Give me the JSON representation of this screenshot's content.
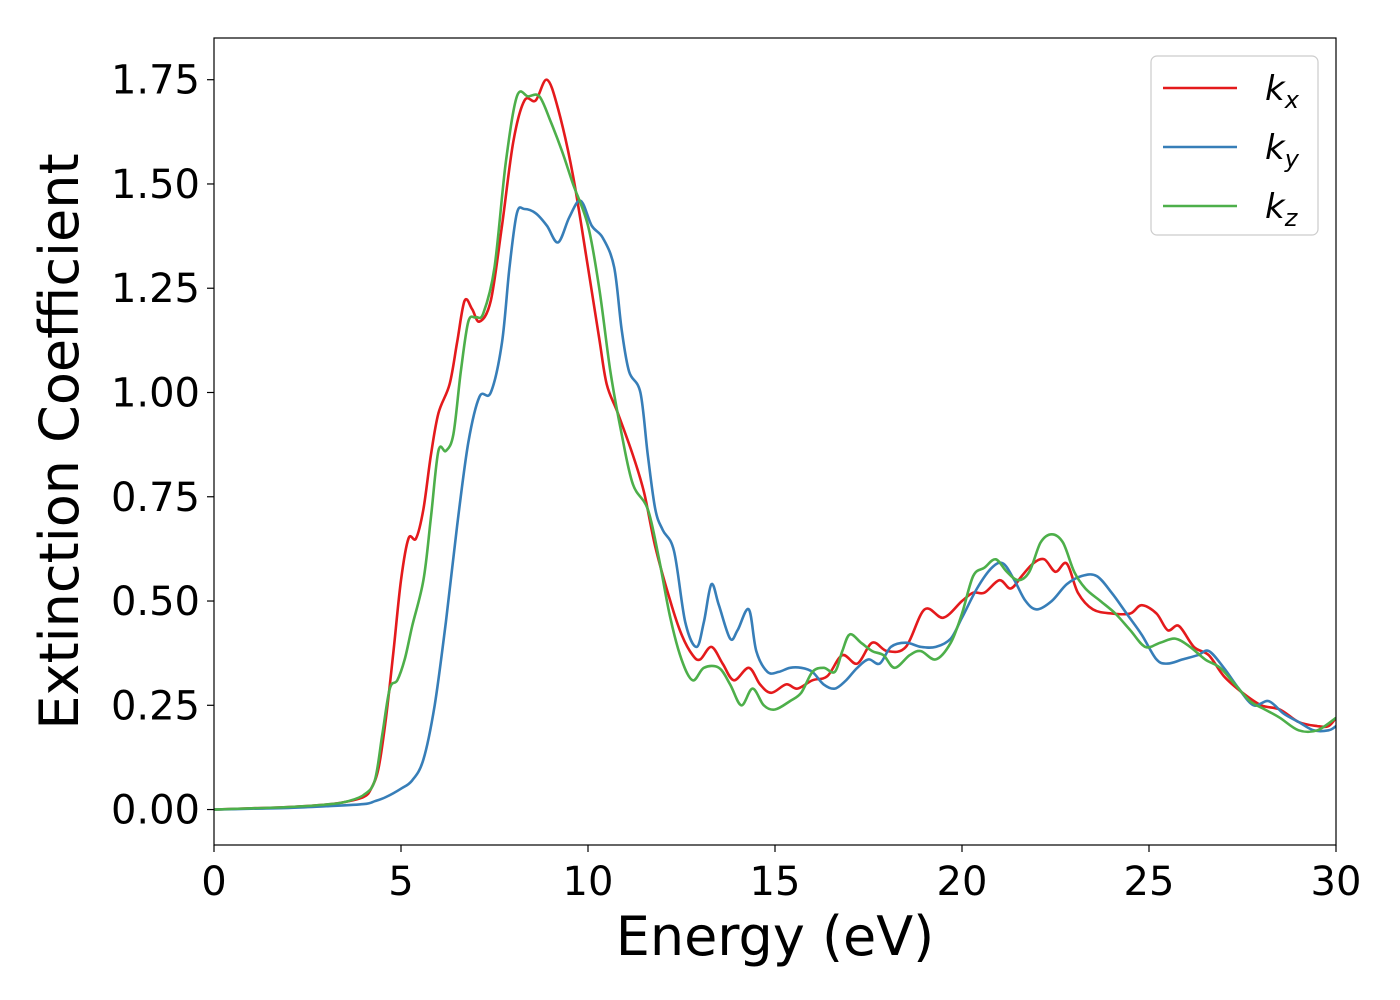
{
  "chart_data": {
    "type": "line",
    "title": "",
    "xlabel": "Energy (eV)",
    "ylabel": "Extinction Coefficient",
    "xlim": [
      0,
      30
    ],
    "ylim": [
      -0.085,
      1.85
    ],
    "xticks": [
      0,
      5,
      10,
      15,
      20,
      25,
      30
    ],
    "xtick_labels": [
      "0",
      "5",
      "10",
      "15",
      "20",
      "25",
      "30"
    ],
    "yticks": [
      0,
      0.25,
      0.5,
      0.75,
      1.0,
      1.25,
      1.5,
      1.75
    ],
    "ytick_labels": [
      "0.00",
      "0.25",
      "0.50",
      "0.75",
      "1.00",
      "1.25",
      "1.50",
      "1.75"
    ],
    "grid": false,
    "legend": "top-right",
    "series": [
      {
        "name": "k",
        "sub": "x",
        "color": "#e41a1c",
        "points": [
          [
            0,
            0
          ],
          [
            1,
            0.003
          ],
          [
            2,
            0.006
          ],
          [
            3,
            0.012
          ],
          [
            3.5,
            0.018
          ],
          [
            4,
            0.03
          ],
          [
            4.2,
            0.05
          ],
          [
            4.4,
            0.1
          ],
          [
            4.6,
            0.22
          ],
          [
            4.8,
            0.38
          ],
          [
            5.0,
            0.55
          ],
          [
            5.2,
            0.65
          ],
          [
            5.4,
            0.65
          ],
          [
            5.6,
            0.72
          ],
          [
            5.8,
            0.85
          ],
          [
            6.0,
            0.95
          ],
          [
            6.3,
            1.02
          ],
          [
            6.5,
            1.12
          ],
          [
            6.7,
            1.22
          ],
          [
            6.9,
            1.2
          ],
          [
            7.1,
            1.17
          ],
          [
            7.4,
            1.22
          ],
          [
            7.7,
            1.4
          ],
          [
            8.0,
            1.6
          ],
          [
            8.3,
            1.7
          ],
          [
            8.6,
            1.7
          ],
          [
            8.9,
            1.75
          ],
          [
            9.2,
            1.68
          ],
          [
            9.6,
            1.52
          ],
          [
            10.0,
            1.3
          ],
          [
            10.3,
            1.13
          ],
          [
            10.5,
            1.02
          ],
          [
            10.8,
            0.95
          ],
          [
            11.2,
            0.85
          ],
          [
            11.5,
            0.76
          ],
          [
            11.8,
            0.63
          ],
          [
            12.2,
            0.5
          ],
          [
            12.5,
            0.42
          ],
          [
            12.8,
            0.37
          ],
          [
            13.0,
            0.36
          ],
          [
            13.3,
            0.39
          ],
          [
            13.6,
            0.35
          ],
          [
            13.9,
            0.31
          ],
          [
            14.3,
            0.34
          ],
          [
            14.6,
            0.3
          ],
          [
            14.9,
            0.28
          ],
          [
            15.3,
            0.3
          ],
          [
            15.6,
            0.29
          ],
          [
            16.0,
            0.31
          ],
          [
            16.4,
            0.32
          ],
          [
            16.8,
            0.37
          ],
          [
            17.2,
            0.35
          ],
          [
            17.6,
            0.4
          ],
          [
            18.0,
            0.38
          ],
          [
            18.5,
            0.39
          ],
          [
            19.0,
            0.48
          ],
          [
            19.5,
            0.46
          ],
          [
            20.0,
            0.5
          ],
          [
            20.3,
            0.52
          ],
          [
            20.6,
            0.52
          ],
          [
            21.0,
            0.55
          ],
          [
            21.3,
            0.53
          ],
          [
            21.6,
            0.56
          ],
          [
            21.9,
            0.59
          ],
          [
            22.2,
            0.6
          ],
          [
            22.5,
            0.57
          ],
          [
            22.8,
            0.59
          ],
          [
            23.1,
            0.52
          ],
          [
            23.5,
            0.48
          ],
          [
            24.0,
            0.47
          ],
          [
            24.5,
            0.47
          ],
          [
            24.8,
            0.49
          ],
          [
            25.2,
            0.47
          ],
          [
            25.5,
            0.43
          ],
          [
            25.8,
            0.44
          ],
          [
            26.2,
            0.39
          ],
          [
            26.6,
            0.37
          ],
          [
            27.0,
            0.32
          ],
          [
            27.5,
            0.28
          ],
          [
            28.0,
            0.25
          ],
          [
            28.5,
            0.24
          ],
          [
            29.0,
            0.21
          ],
          [
            29.5,
            0.2
          ],
          [
            29.8,
            0.2
          ],
          [
            30.0,
            0.22
          ]
        ]
      },
      {
        "name": "k",
        "sub": "y",
        "color": "#377eb8",
        "points": [
          [
            0,
            0
          ],
          [
            1,
            0.002
          ],
          [
            2,
            0.004
          ],
          [
            3,
            0.008
          ],
          [
            4,
            0.013
          ],
          [
            4.3,
            0.02
          ],
          [
            4.6,
            0.03
          ],
          [
            5.0,
            0.05
          ],
          [
            5.3,
            0.07
          ],
          [
            5.6,
            0.12
          ],
          [
            5.9,
            0.25
          ],
          [
            6.2,
            0.45
          ],
          [
            6.5,
            0.68
          ],
          [
            6.8,
            0.88
          ],
          [
            7.1,
            0.99
          ],
          [
            7.4,
            1.0
          ],
          [
            7.7,
            1.12
          ],
          [
            7.9,
            1.3
          ],
          [
            8.1,
            1.43
          ],
          [
            8.3,
            1.44
          ],
          [
            8.6,
            1.43
          ],
          [
            8.9,
            1.4
          ],
          [
            9.2,
            1.36
          ],
          [
            9.5,
            1.42
          ],
          [
            9.8,
            1.46
          ],
          [
            10.1,
            1.4
          ],
          [
            10.4,
            1.37
          ],
          [
            10.7,
            1.3
          ],
          [
            10.9,
            1.15
          ],
          [
            11.1,
            1.05
          ],
          [
            11.4,
            1.0
          ],
          [
            11.6,
            0.85
          ],
          [
            11.8,
            0.72
          ],
          [
            12.0,
            0.67
          ],
          [
            12.3,
            0.62
          ],
          [
            12.6,
            0.45
          ],
          [
            12.9,
            0.39
          ],
          [
            13.1,
            0.45
          ],
          [
            13.3,
            0.54
          ],
          [
            13.5,
            0.49
          ],
          [
            13.8,
            0.41
          ],
          [
            14.0,
            0.43
          ],
          [
            14.3,
            0.48
          ],
          [
            14.5,
            0.38
          ],
          [
            14.8,
            0.33
          ],
          [
            15.1,
            0.33
          ],
          [
            15.4,
            0.34
          ],
          [
            15.7,
            0.34
          ],
          [
            16.0,
            0.33
          ],
          [
            16.3,
            0.3
          ],
          [
            16.6,
            0.29
          ],
          [
            16.9,
            0.31
          ],
          [
            17.2,
            0.34
          ],
          [
            17.5,
            0.36
          ],
          [
            17.8,
            0.35
          ],
          [
            18.1,
            0.39
          ],
          [
            18.5,
            0.4
          ],
          [
            18.9,
            0.39
          ],
          [
            19.3,
            0.39
          ],
          [
            19.7,
            0.41
          ],
          [
            20.0,
            0.46
          ],
          [
            20.4,
            0.53
          ],
          [
            20.8,
            0.58
          ],
          [
            21.1,
            0.59
          ],
          [
            21.4,
            0.55
          ],
          [
            21.7,
            0.5
          ],
          [
            22.0,
            0.48
          ],
          [
            22.4,
            0.5
          ],
          [
            22.8,
            0.54
          ],
          [
            23.2,
            0.56
          ],
          [
            23.6,
            0.56
          ],
          [
            24.0,
            0.52
          ],
          [
            24.4,
            0.47
          ],
          [
            24.8,
            0.42
          ],
          [
            25.2,
            0.36
          ],
          [
            25.5,
            0.35
          ],
          [
            25.9,
            0.36
          ],
          [
            26.3,
            0.37
          ],
          [
            26.6,
            0.38
          ],
          [
            27.0,
            0.34
          ],
          [
            27.4,
            0.29
          ],
          [
            27.8,
            0.25
          ],
          [
            28.2,
            0.26
          ],
          [
            28.6,
            0.23
          ],
          [
            29.0,
            0.21
          ],
          [
            29.4,
            0.19
          ],
          [
            29.8,
            0.19
          ],
          [
            30.0,
            0.2
          ]
        ]
      },
      {
        "name": "k",
        "sub": "z",
        "color": "#4daf4a",
        "points": [
          [
            0,
            0
          ],
          [
            1,
            0.003
          ],
          [
            2,
            0.006
          ],
          [
            3,
            0.012
          ],
          [
            3.5,
            0.018
          ],
          [
            4,
            0.035
          ],
          [
            4.3,
            0.07
          ],
          [
            4.5,
            0.18
          ],
          [
            4.7,
            0.29
          ],
          [
            4.9,
            0.31
          ],
          [
            5.1,
            0.36
          ],
          [
            5.3,
            0.44
          ],
          [
            5.6,
            0.55
          ],
          [
            5.8,
            0.7
          ],
          [
            6.0,
            0.86
          ],
          [
            6.2,
            0.86
          ],
          [
            6.4,
            0.9
          ],
          [
            6.6,
            1.05
          ],
          [
            6.8,
            1.17
          ],
          [
            7.0,
            1.18
          ],
          [
            7.2,
            1.19
          ],
          [
            7.5,
            1.3
          ],
          [
            7.8,
            1.55
          ],
          [
            8.1,
            1.71
          ],
          [
            8.4,
            1.71
          ],
          [
            8.7,
            1.71
          ],
          [
            9.0,
            1.65
          ],
          [
            9.3,
            1.58
          ],
          [
            9.6,
            1.5
          ],
          [
            10.0,
            1.4
          ],
          [
            10.3,
            1.25
          ],
          [
            10.6,
            1.05
          ],
          [
            10.9,
            0.9
          ],
          [
            11.2,
            0.78
          ],
          [
            11.6,
            0.72
          ],
          [
            11.9,
            0.6
          ],
          [
            12.2,
            0.46
          ],
          [
            12.5,
            0.36
          ],
          [
            12.8,
            0.31
          ],
          [
            13.1,
            0.34
          ],
          [
            13.5,
            0.34
          ],
          [
            13.8,
            0.3
          ],
          [
            14.1,
            0.25
          ],
          [
            14.4,
            0.29
          ],
          [
            14.7,
            0.25
          ],
          [
            15.0,
            0.24
          ],
          [
            15.4,
            0.26
          ],
          [
            15.7,
            0.28
          ],
          [
            16.0,
            0.33
          ],
          [
            16.3,
            0.34
          ],
          [
            16.6,
            0.33
          ],
          [
            16.8,
            0.38
          ],
          [
            17.0,
            0.42
          ],
          [
            17.3,
            0.4
          ],
          [
            17.6,
            0.38
          ],
          [
            17.9,
            0.37
          ],
          [
            18.2,
            0.34
          ],
          [
            18.6,
            0.37
          ],
          [
            18.9,
            0.38
          ],
          [
            19.3,
            0.36
          ],
          [
            19.7,
            0.4
          ],
          [
            20.0,
            0.47
          ],
          [
            20.3,
            0.56
          ],
          [
            20.6,
            0.58
          ],
          [
            20.9,
            0.6
          ],
          [
            21.2,
            0.57
          ],
          [
            21.5,
            0.55
          ],
          [
            21.8,
            0.57
          ],
          [
            22.1,
            0.64
          ],
          [
            22.4,
            0.66
          ],
          [
            22.7,
            0.64
          ],
          [
            23.0,
            0.57
          ],
          [
            23.3,
            0.53
          ],
          [
            23.7,
            0.5
          ],
          [
            24.1,
            0.47
          ],
          [
            24.5,
            0.43
          ],
          [
            24.9,
            0.39
          ],
          [
            25.3,
            0.4
          ],
          [
            25.7,
            0.41
          ],
          [
            26.1,
            0.39
          ],
          [
            26.5,
            0.36
          ],
          [
            26.9,
            0.34
          ],
          [
            27.3,
            0.3
          ],
          [
            27.7,
            0.26
          ],
          [
            28.1,
            0.24
          ],
          [
            28.5,
            0.22
          ],
          [
            29.0,
            0.19
          ],
          [
            29.5,
            0.19
          ],
          [
            30.0,
            0.22
          ]
        ]
      }
    ]
  }
}
